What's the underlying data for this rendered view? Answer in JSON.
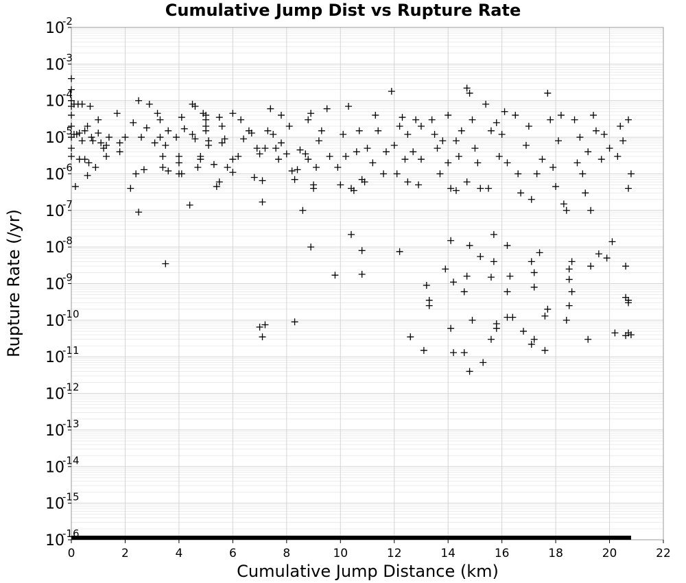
{
  "chart_data": {
    "type": "scatter",
    "title": "Cumulative Jump Dist vs Rupture Rate",
    "xlabel": "Cumulative Jump Distance (km)",
    "ylabel": "Rupture Rate (/yr)",
    "xlim": [
      0,
      22
    ],
    "ylim": [
      1e-16,
      0.01
    ],
    "yscale": "log",
    "grid": true,
    "marker": "+",
    "marker_color": "#000000",
    "x_ticks": [
      "0",
      "2",
      "4",
      "6",
      "8",
      "10",
      "12",
      "14",
      "16",
      "18",
      "20",
      "22"
    ],
    "y_ticks": [
      {
        "base": "10",
        "exp": "-2"
      },
      {
        "base": "10",
        "exp": "-3"
      },
      {
        "base": "10",
        "exp": "-4"
      },
      {
        "base": "10",
        "exp": "-5"
      },
      {
        "base": "10",
        "exp": "-6"
      },
      {
        "base": "10",
        "exp": "-7"
      },
      {
        "base": "10",
        "exp": "-8"
      },
      {
        "base": "10",
        "exp": "-9"
      },
      {
        "base": "10",
        "exp": "-10"
      },
      {
        "base": "10",
        "exp": "-11"
      },
      {
        "base": "10",
        "exp": "-12"
      },
      {
        "base": "10",
        "exp": "-13"
      },
      {
        "base": "10",
        "exp": "-14"
      },
      {
        "base": "10",
        "exp": "-15"
      },
      {
        "base": "10",
        "exp": "-16"
      }
    ],
    "points": [
      [
        0,
        0.0004
      ],
      [
        0,
        0.0002
      ],
      [
        0,
        0.0001
      ],
      [
        0,
        7e-05
      ],
      [
        0,
        4e-05
      ],
      [
        0,
        2e-05
      ],
      [
        0,
        1e-05
      ],
      [
        0,
        5e-06
      ],
      [
        0,
        3e-06
      ],
      [
        0.1,
        8e-05
      ],
      [
        0.1,
        1.2e-05
      ],
      [
        0.15,
        4.5e-07
      ],
      [
        0.2,
        1.2e-05
      ],
      [
        0.25,
        8e-05
      ],
      [
        0.3,
        1.3e-05
      ],
      [
        0.3,
        2.5e-06
      ],
      [
        0.4,
        8e-06
      ],
      [
        0.4,
        8e-05
      ],
      [
        0.5,
        1.5e-05
      ],
      [
        0.5,
        2.5e-06
      ],
      [
        0.6,
        9e-07
      ],
      [
        0.6,
        2e-05
      ],
      [
        0.65,
        2e-06
      ],
      [
        0.7,
        7e-05
      ],
      [
        0.75,
        1e-05
      ],
      [
        0.8,
        8e-06
      ],
      [
        0.9,
        1.5e-06
      ],
      [
        1.0,
        1.3e-05
      ],
      [
        1.0,
        3e-05
      ],
      [
        1.1,
        7e-06
      ],
      [
        1.2,
        5e-06
      ],
      [
        1.3,
        6e-06
      ],
      [
        1.3,
        3e-06
      ],
      [
        1.4,
        1e-05
      ],
      [
        1.7,
        4.5e-05
      ],
      [
        1.8,
        7e-06
      ],
      [
        1.8,
        4e-06
      ],
      [
        2.0,
        1e-05
      ],
      [
        2.2,
        4e-07
      ],
      [
        2.3,
        2.5e-05
      ],
      [
        2.4,
        1e-06
      ],
      [
        2.5,
        9e-08
      ],
      [
        2.5,
        0.0001
      ],
      [
        2.6,
        1e-05
      ],
      [
        2.7,
        1.3e-06
      ],
      [
        2.8,
        1.8e-05
      ],
      [
        2.9,
        8e-05
      ],
      [
        3.1,
        7e-06
      ],
      [
        3.2,
        4.5e-05
      ],
      [
        3.3,
        3e-05
      ],
      [
        3.3,
        1e-05
      ],
      [
        3.4,
        3e-06
      ],
      [
        3.4,
        1.5e-06
      ],
      [
        3.5,
        3.5e-09
      ],
      [
        3.5,
        6e-06
      ],
      [
        3.6,
        1.5e-05
      ],
      [
        3.6,
        1.2e-06
      ],
      [
        3.9,
        1e-05
      ],
      [
        4.0,
        2e-06
      ],
      [
        4.0,
        3e-06
      ],
      [
        4.0,
        1e-06
      ],
      [
        4.1,
        3.5e-05
      ],
      [
        4.1,
        1e-06
      ],
      [
        4.2,
        1.7e-05
      ],
      [
        4.4,
        1.4e-07
      ],
      [
        4.5,
        1.2e-05
      ],
      [
        4.5,
        8e-05
      ],
      [
        4.6,
        7e-05
      ],
      [
        4.6,
        9e-06
      ],
      [
        4.7,
        1.5e-06
      ],
      [
        4.8,
        3e-06
      ],
      [
        4.8,
        2.5e-06
      ],
      [
        4.9,
        4.5e-05
      ],
      [
        5.0,
        4e-05
      ],
      [
        5.0,
        3e-05
      ],
      [
        5.0,
        2e-05
      ],
      [
        5.0,
        1.5e-05
      ],
      [
        5.1,
        8e-06
      ],
      [
        5.1,
        6e-06
      ],
      [
        5.3,
        1.8e-06
      ],
      [
        5.4,
        4.5e-07
      ],
      [
        5.5,
        6e-07
      ],
      [
        5.5,
        3.5e-05
      ],
      [
        5.6,
        2e-05
      ],
      [
        5.6,
        7e-06
      ],
      [
        5.7,
        9e-06
      ],
      [
        5.8,
        1.5e-06
      ],
      [
        6.0,
        2.5e-06
      ],
      [
        6.0,
        1.1e-06
      ],
      [
        6.0,
        4.5e-05
      ],
      [
        6.2,
        3e-06
      ],
      [
        6.3,
        3e-05
      ],
      [
        6.4,
        9e-06
      ],
      [
        6.6,
        1.5e-05
      ],
      [
        6.7,
        1.3e-05
      ],
      [
        6.8,
        8e-07
      ],
      [
        6.9,
        5e-06
      ],
      [
        7.0,
        6.5e-11
      ],
      [
        7.0,
        3.5e-06
      ],
      [
        7.1,
        3.5e-11
      ],
      [
        7.1,
        1.7e-07
      ],
      [
        7.1,
        6.5e-07
      ],
      [
        7.2,
        7.5e-11
      ],
      [
        7.2,
        5e-06
      ],
      [
        7.3,
        1.5e-05
      ],
      [
        7.4,
        6e-05
      ],
      [
        7.5,
        1.2e-05
      ],
      [
        7.6,
        5e-06
      ],
      [
        7.7,
        2.5e-06
      ],
      [
        7.8,
        7e-06
      ],
      [
        7.8,
        4e-05
      ],
      [
        8.0,
        3.5e-06
      ],
      [
        8.1,
        2e-05
      ],
      [
        8.2,
        1.2e-06
      ],
      [
        8.3,
        9e-11
      ],
      [
        8.3,
        7e-07
      ],
      [
        8.4,
        1.3e-06
      ],
      [
        8.5,
        4.5e-06
      ],
      [
        8.6,
        1e-07
      ],
      [
        8.7,
        3.5e-06
      ],
      [
        8.8,
        3e-05
      ],
      [
        8.8,
        2.5e-06
      ],
      [
        8.9,
        1e-08
      ],
      [
        8.9,
        4.5e-05
      ],
      [
        9.0,
        5e-07
      ],
      [
        9.0,
        4e-07
      ],
      [
        9.1,
        1.5e-06
      ],
      [
        9.2,
        8e-06
      ],
      [
        9.3,
        1.5e-05
      ],
      [
        9.5,
        6e-05
      ],
      [
        9.6,
        3e-06
      ],
      [
        9.8,
        1.7e-09
      ],
      [
        9.9,
        1.5e-06
      ],
      [
        10.0,
        5e-07
      ],
      [
        10.1,
        1.2e-05
      ],
      [
        10.2,
        3e-06
      ],
      [
        10.3,
        7e-05
      ],
      [
        10.4,
        2.2e-08
      ],
      [
        10.4,
        4e-07
      ],
      [
        10.5,
        3.5e-07
      ],
      [
        10.6,
        4e-06
      ],
      [
        10.7,
        1.5e-05
      ],
      [
        10.8,
        8e-09
      ],
      [
        10.8,
        1.8e-09
      ],
      [
        10.8,
        7e-07
      ],
      [
        10.9,
        6e-07
      ],
      [
        11.0,
        5e-06
      ],
      [
        11.2,
        2e-06
      ],
      [
        11.3,
        4e-05
      ],
      [
        11.4,
        1.5e-05
      ],
      [
        11.6,
        1e-06
      ],
      [
        11.7,
        4e-06
      ],
      [
        11.9,
        0.00018
      ],
      [
        12.0,
        6e-06
      ],
      [
        12.1,
        1e-06
      ],
      [
        12.2,
        7.5e-09
      ],
      [
        12.2,
        2e-05
      ],
      [
        12.3,
        3.5e-05
      ],
      [
        12.4,
        2.5e-06
      ],
      [
        12.5,
        6e-07
      ],
      [
        12.5,
        1.2e-05
      ],
      [
        12.6,
        3.5e-11
      ],
      [
        12.7,
        4e-06
      ],
      [
        12.8,
        3e-05
      ],
      [
        12.9,
        5e-07
      ],
      [
        13.0,
        2e-05
      ],
      [
        13.0,
        2.5e-06
      ],
      [
        13.1,
        1.5e-11
      ],
      [
        13.2,
        9e-10
      ],
      [
        13.3,
        3.5e-10
      ],
      [
        13.3,
        2.5e-10
      ],
      [
        13.4,
        3e-05
      ],
      [
        13.5,
        1.2e-05
      ],
      [
        13.6,
        5e-06
      ],
      [
        13.7,
        1e-06
      ],
      [
        13.8,
        8e-06
      ],
      [
        13.9,
        2.5e-09
      ],
      [
        14.0,
        4e-05
      ],
      [
        14.0,
        2e-06
      ],
      [
        14.1,
        6e-11
      ],
      [
        14.1,
        1.5e-08
      ],
      [
        14.1,
        4e-07
      ],
      [
        14.2,
        1.3e-11
      ],
      [
        14.2,
        1.1e-09
      ],
      [
        14.3,
        3.5e-07
      ],
      [
        14.3,
        8e-06
      ],
      [
        14.4,
        3e-06
      ],
      [
        14.5,
        1.5e-05
      ],
      [
        14.6,
        6e-10
      ],
      [
        14.6,
        1.3e-11
      ],
      [
        14.7,
        0.00022
      ],
      [
        14.7,
        1.6e-09
      ],
      [
        14.7,
        6e-07
      ],
      [
        14.8,
        0.00016
      ],
      [
        14.8,
        1.1e-08
      ],
      [
        14.8,
        4e-12
      ],
      [
        14.9,
        1e-10
      ],
      [
        14.9,
        3e-05
      ],
      [
        15.0,
        5e-06
      ],
      [
        15.1,
        2e-06
      ],
      [
        15.2,
        4e-07
      ],
      [
        15.2,
        5.5e-09
      ],
      [
        15.3,
        7e-12
      ],
      [
        15.4,
        8e-05
      ],
      [
        15.5,
        4e-07
      ],
      [
        15.6,
        1.5e-09
      ],
      [
        15.6,
        3e-11
      ],
      [
        15.6,
        1.5e-05
      ],
      [
        15.7,
        2.2e-08
      ],
      [
        15.7,
        4e-09
      ],
      [
        15.8,
        8e-11
      ],
      [
        15.8,
        6e-11
      ],
      [
        15.8,
        2.5e-05
      ],
      [
        15.9,
        3e-06
      ],
      [
        16.0,
        1.2e-05
      ],
      [
        16.1,
        5e-05
      ],
      [
        16.2,
        1.1e-08
      ],
      [
        16.2,
        6e-10
      ],
      [
        16.2,
        1.2e-10
      ],
      [
        16.2,
        2e-06
      ],
      [
        16.3,
        1.6e-09
      ],
      [
        16.4,
        1.2e-10
      ],
      [
        16.5,
        4e-05
      ],
      [
        16.6,
        1e-06
      ],
      [
        16.7,
        3e-07
      ],
      [
        16.8,
        5e-11
      ],
      [
        16.9,
        6e-06
      ],
      [
        17.0,
        2e-05
      ],
      [
        17.1,
        4e-09
      ],
      [
        17.1,
        2.2e-11
      ],
      [
        17.1,
        2e-07
      ],
      [
        17.2,
        2e-09
      ],
      [
        17.2,
        8e-10
      ],
      [
        17.2,
        3e-11
      ],
      [
        17.3,
        1e-06
      ],
      [
        17.4,
        7e-09
      ],
      [
        17.5,
        2.5e-06
      ],
      [
        17.6,
        1.3e-10
      ],
      [
        17.6,
        1.5e-11
      ],
      [
        17.7,
        0.00016
      ],
      [
        17.7,
        2e-10
      ],
      [
        17.8,
        3e-05
      ],
      [
        17.9,
        1.5e-06
      ],
      [
        18.0,
        4.5e-07
      ],
      [
        18.1,
        8e-06
      ],
      [
        18.2,
        4e-05
      ],
      [
        18.3,
        1.5e-07
      ],
      [
        18.4,
        1e-07
      ],
      [
        18.4,
        1e-10
      ],
      [
        18.5,
        2.5e-09
      ],
      [
        18.5,
        1.3e-09
      ],
      [
        18.5,
        2.5e-10
      ],
      [
        18.6,
        4e-09
      ],
      [
        18.6,
        6e-10
      ],
      [
        18.7,
        3e-05
      ],
      [
        18.8,
        2e-06
      ],
      [
        18.9,
        1e-05
      ],
      [
        19.0,
        1e-06
      ],
      [
        19.1,
        3e-07
      ],
      [
        19.2,
        3e-11
      ],
      [
        19.2,
        4e-06
      ],
      [
        19.3,
        1e-07
      ],
      [
        19.3,
        3e-09
      ],
      [
        19.4,
        4e-05
      ],
      [
        19.5,
        1.5e-05
      ],
      [
        19.6,
        6.5e-09
      ],
      [
        19.7,
        2.5e-06
      ],
      [
        19.8,
        1.2e-05
      ],
      [
        19.9,
        5e-09
      ],
      [
        20.0,
        5e-06
      ],
      [
        20.1,
        1.4e-08
      ],
      [
        20.2,
        4.5e-11
      ],
      [
        20.3,
        3e-06
      ],
      [
        20.4,
        2e-05
      ],
      [
        20.5,
        8e-06
      ],
      [
        20.6,
        3e-09
      ],
      [
        20.6,
        3.8e-11
      ],
      [
        20.6,
        4.2e-10
      ],
      [
        20.7,
        3e-10
      ],
      [
        20.7,
        4.5e-11
      ],
      [
        20.7,
        3.5e-10
      ],
      [
        20.7,
        4e-07
      ],
      [
        20.7,
        3e-05
      ],
      [
        20.8,
        4e-11
      ],
      [
        20.8,
        1e-06
      ]
    ],
    "baseline": {
      "x_from": 0,
      "x_to": 20.8,
      "y": 1e-16
    }
  }
}
